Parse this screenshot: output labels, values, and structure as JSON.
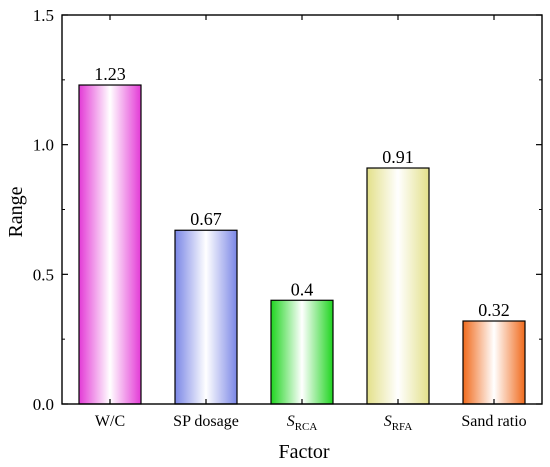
{
  "chart_data": {
    "type": "bar",
    "title": "",
    "xlabel": "Factor",
    "ylabel": "Range",
    "ylim": [
      0,
      1.5
    ],
    "yticks": [
      "0.0",
      "0.5",
      "1.0",
      "1.5"
    ],
    "categories": [
      {
        "main": "W/C",
        "sub": ""
      },
      {
        "main": "SP dosage",
        "sub": ""
      },
      {
        "main": "S",
        "sub": "RCA"
      },
      {
        "main": "S",
        "sub": "RFA"
      },
      {
        "main": "Sand ratio",
        "sub": ""
      }
    ],
    "values": [
      1.23,
      0.67,
      0.4,
      0.91,
      0.32
    ],
    "value_labels": [
      "1.23",
      "0.67",
      "0.4",
      "0.91",
      "0.32"
    ],
    "colors": [
      "#e33ad6",
      "#7a86e6",
      "#1fd420",
      "#e3e08a",
      "#f06a1c"
    ],
    "grid": false
  }
}
